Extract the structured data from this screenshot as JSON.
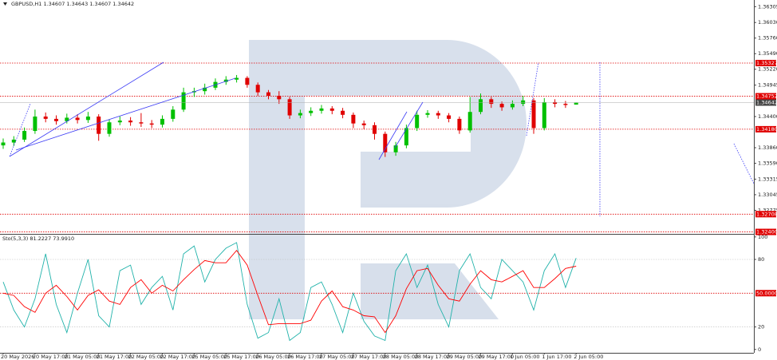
{
  "chart_data": [
    {
      "type": "candlestick",
      "title": "GBPUSD,H1  1.34607 1.34643 1.34607 1.34642",
      "categories": [
        "20 May 2026",
        null,
        null,
        "20 May 17:00",
        null,
        null,
        "21 May 05:00",
        null,
        null,
        "21 May 17:00",
        null,
        null,
        "22 May 05:00",
        null,
        null,
        "22 May 17:00",
        null,
        null,
        "25 May 05:00",
        null,
        null,
        "25 May 17:00",
        null,
        null,
        "26 May 05:00",
        null,
        null,
        "26 May 17:00",
        null,
        null,
        "27 May 05:00",
        null,
        null,
        "27 May 17:00",
        null,
        null,
        "28 May 05:00",
        null,
        null,
        "28 May 17:00",
        null,
        null,
        "29 May 05:00",
        null,
        null,
        "29 May 17:00",
        null,
        null,
        "1 Jun 05:00",
        null,
        null,
        "1 Jun 17:00",
        null,
        null,
        "2 Jun 05:00"
      ],
      "open": [
        1.339,
        1.3395,
        1.34,
        1.3415,
        1.344,
        1.3436,
        1.3432,
        1.3438,
        1.3434,
        1.344,
        1.341,
        1.343,
        1.3433,
        1.343,
        1.3428,
        1.3426,
        1.3436,
        1.3452,
        1.3482,
        1.3484,
        1.349,
        1.35,
        1.3504,
        1.3507,
        1.3495,
        1.3482,
        1.3476,
        1.347,
        1.3442,
        1.3446,
        1.345,
        1.3454,
        1.345,
        1.3443,
        1.3428,
        1.3425,
        1.341,
        1.3378,
        1.339,
        1.342,
        1.3443,
        1.3446,
        1.3442,
        1.3436,
        1.3416,
        1.3448,
        1.347,
        1.3462,
        1.3456,
        1.3462,
        1.3468,
        1.342,
        1.3465,
        1.3462,
        1.34607
      ],
      "high": [
        1.3402,
        1.3406,
        1.3421,
        1.3452,
        1.3447,
        1.3442,
        1.3445,
        1.3444,
        1.3448,
        1.3444,
        1.3435,
        1.344,
        1.3439,
        1.3446,
        1.3434,
        1.3442,
        1.3458,
        1.349,
        1.349,
        1.3497,
        1.3506,
        1.351,
        1.3512,
        1.351,
        1.3499,
        1.3486,
        1.3484,
        1.3474,
        1.3452,
        1.3456,
        1.346,
        1.3458,
        1.3455,
        1.3447,
        1.3433,
        1.343,
        1.3414,
        1.3396,
        1.3426,
        1.345,
        1.3451,
        1.345,
        1.3446,
        1.344,
        1.3474,
        1.348,
        1.3474,
        1.3466,
        1.3468,
        1.3476,
        1.3472,
        1.3472,
        1.347,
        1.3467,
        1.34643
      ],
      "low": [
        1.3384,
        1.3389,
        1.3396,
        1.341,
        1.343,
        1.3426,
        1.3428,
        1.3428,
        1.3429,
        1.3398,
        1.3405,
        1.3425,
        1.3424,
        1.3422,
        1.342,
        1.3421,
        1.3431,
        1.3448,
        1.3474,
        1.3478,
        1.3486,
        1.3495,
        1.3499,
        1.349,
        1.3476,
        1.347,
        1.3462,
        1.3436,
        1.3437,
        1.3441,
        1.3445,
        1.3444,
        1.3437,
        1.342,
        1.3418,
        1.34,
        1.337,
        1.3372,
        1.3385,
        1.3415,
        1.3438,
        1.3436,
        1.343,
        1.341,
        1.3412,
        1.3444,
        1.3455,
        1.345,
        1.3452,
        1.3458,
        1.341,
        1.3416,
        1.3456,
        1.3455,
        1.34607
      ],
      "close": [
        1.3395,
        1.34,
        1.3415,
        1.344,
        1.3436,
        1.3432,
        1.3438,
        1.3434,
        1.344,
        1.341,
        1.343,
        1.3433,
        1.343,
        1.3428,
        1.3426,
        1.3436,
        1.3452,
        1.3482,
        1.3484,
        1.349,
        1.35,
        1.3504,
        1.3507,
        1.3495,
        1.3482,
        1.3476,
        1.347,
        1.3442,
        1.3446,
        1.345,
        1.3454,
        1.345,
        1.3443,
        1.3428,
        1.3425,
        1.341,
        1.3378,
        1.339,
        1.342,
        1.3443,
        1.3446,
        1.3442,
        1.3436,
        1.3416,
        1.3448,
        1.347,
        1.3462,
        1.3456,
        1.3462,
        1.3468,
        1.342,
        1.3465,
        1.3462,
        1.346,
        1.34642
      ],
      "up_color": "#00c000",
      "down_color": "#e00000",
      "ylim": [
        1.3238,
        1.3642
      ],
      "yticks": [
        {
          "value": 1.36305,
          "label": "1.36305"
        },
        {
          "value": 1.3603,
          "label": "1.36030"
        },
        {
          "value": 1.3576,
          "label": "1.35760"
        },
        {
          "value": 1.3549,
          "label": "1.35490"
        },
        {
          "value": 1.3522,
          "label": "1.35220"
        },
        {
          "value": 1.34945,
          "label": "1.34945"
        },
        {
          "value": 1.344,
          "label": "1.34400"
        },
        {
          "value": 1.3386,
          "label": "1.33860"
        },
        {
          "value": 1.3359,
          "label": "1.33590"
        },
        {
          "value": 1.33315,
          "label": "1.33315"
        },
        {
          "value": 1.33045,
          "label": "1.33045"
        },
        {
          "value": 1.32775,
          "label": "1.32775"
        }
      ],
      "levels": [
        {
          "value": 1.35327,
          "label": "1.35327"
        },
        {
          "value": 1.34752,
          "label": "1.34752"
        },
        {
          "value": 1.3418,
          "label": "1.34180"
        },
        {
          "value": 1.32708,
          "label": "1.32708"
        },
        {
          "value": 1.324,
          "label": "1.32400"
        }
      ],
      "level_color": "#e00000"
    },
    {
      "type": "line",
      "title": "Sto(5,3,3) 81.2227 73.9910",
      "series": [
        {
          "color": "#20b2aa",
          "values": [
            60,
            35,
            20,
            45,
            85,
            40,
            15,
            50,
            80,
            30,
            20,
            70,
            75,
            40,
            55,
            65,
            35,
            85,
            92,
            60,
            80,
            90,
            95,
            40,
            10,
            15,
            45,
            8,
            15,
            55,
            60,
            40,
            15,
            50,
            25,
            12,
            8,
            70,
            85,
            55,
            75,
            40,
            20,
            70,
            85,
            55,
            45,
            80,
            70,
            60,
            35,
            70,
            85,
            55,
            81.2227
          ]
        },
        {
          "color": "#ff0000",
          "values": [
            50,
            48,
            38,
            33,
            50,
            57,
            47,
            35,
            48,
            53,
            43,
            40,
            55,
            62,
            50,
            57,
            52,
            62,
            71,
            79,
            77,
            77,
            88,
            75,
            48,
            22,
            23,
            23,
            23,
            26,
            43,
            52,
            38,
            35,
            30,
            29,
            15,
            30,
            54,
            70,
            72,
            57,
            45,
            43,
            58,
            70,
            62,
            60,
            65,
            70,
            55,
            55,
            63,
            72,
            73.991
          ]
        }
      ],
      "ylim": [
        -3,
        102
      ],
      "yticks": [
        0,
        20,
        80,
        100
      ],
      "levels": [
        {
          "value": 50,
          "label": "50.0000"
        }
      ],
      "level_color": "#e00000"
    }
  ]
}
